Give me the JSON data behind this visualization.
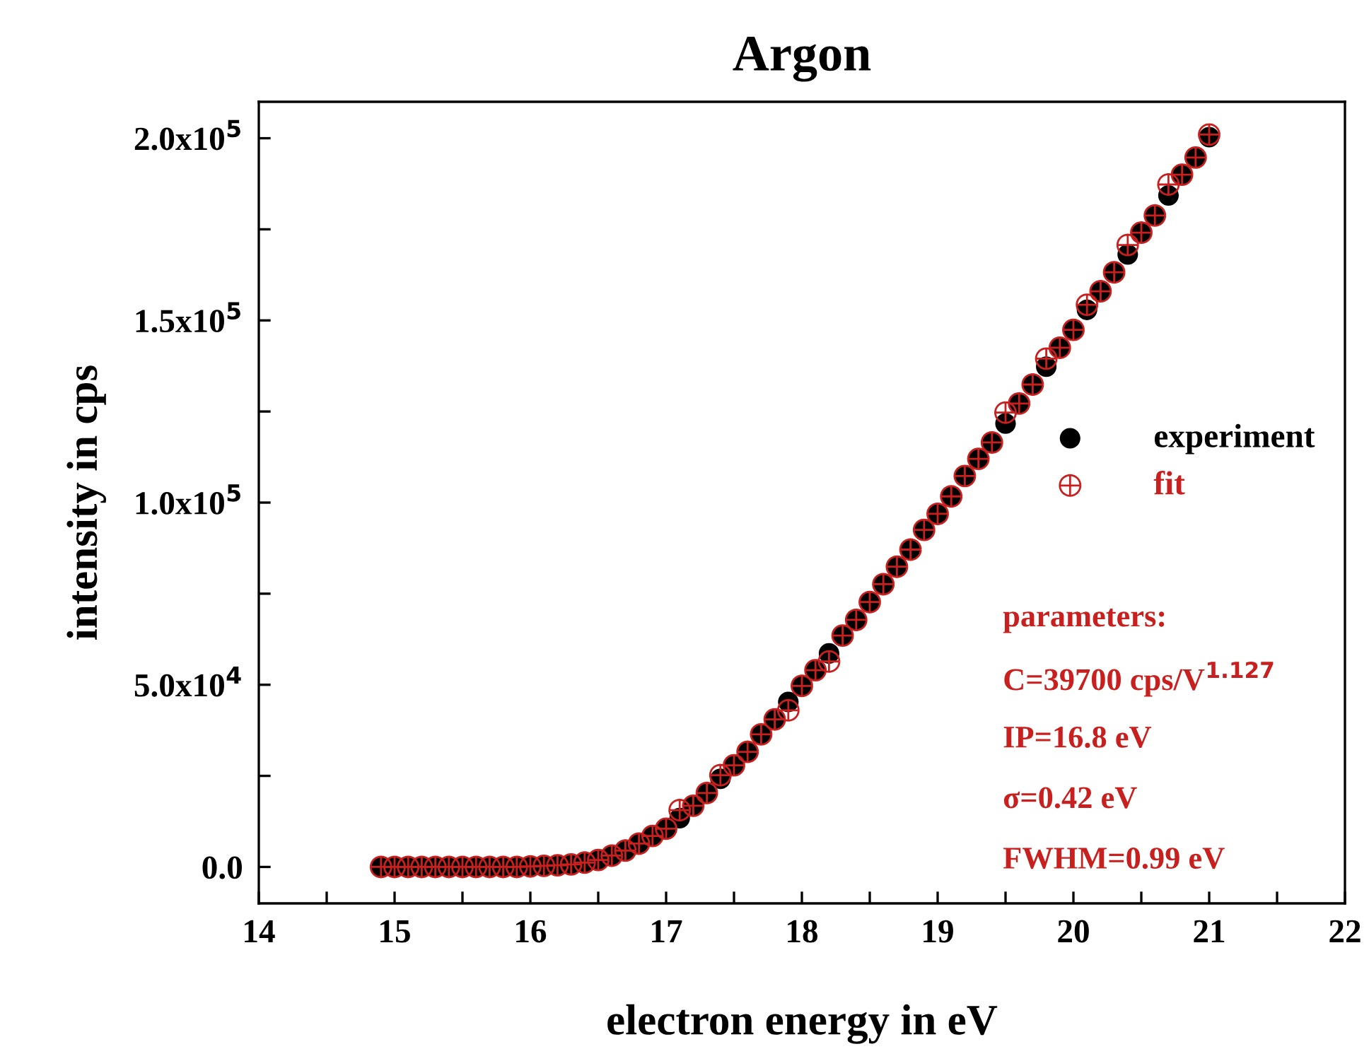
{
  "chart_data": {
    "type": "scatter",
    "title": "Argon",
    "xlabel": "electron energy in eV",
    "ylabel": "intensity in cps",
    "x": [
      14.9,
      15.0,
      15.1,
      15.2,
      15.3,
      15.4,
      15.5,
      15.6,
      15.7,
      15.8,
      15.9,
      16.0,
      16.1,
      16.2,
      16.3,
      16.4,
      16.5,
      16.6,
      16.7,
      16.8,
      16.9,
      17.0,
      17.1,
      17.2,
      17.3,
      17.4,
      17.5,
      17.6,
      17.7,
      17.8,
      17.9,
      18.0,
      18.1,
      18.2,
      18.3,
      18.4,
      18.5,
      18.6,
      18.7,
      18.8,
      18.9,
      19.0,
      19.1,
      19.2,
      19.3,
      19.4,
      19.5,
      19.6,
      19.7,
      19.8,
      19.9,
      20.0,
      20.1,
      20.2,
      20.3,
      20.4,
      20.5,
      20.6,
      20.7,
      20.8,
      20.9,
      21.0
    ],
    "series": [
      {
        "name": "experiment",
        "color": "#000000",
        "marker": "circle",
        "values": [
          0,
          0,
          0,
          0,
          0,
          0,
          0,
          0,
          0,
          0,
          0,
          150,
          300,
          450,
          700,
          1200,
          1900,
          3100,
          4500,
          6400,
          8500,
          10500,
          13400,
          16800,
          20300,
          24200,
          27900,
          31600,
          36400,
          40500,
          45300,
          49700,
          54000,
          58600,
          63500,
          67800,
          72700,
          77600,
          82400,
          87100,
          92500,
          96900,
          101700,
          107300,
          112000,
          116500,
          121700,
          127200,
          132400,
          137300,
          142500,
          147400,
          152900,
          158000,
          163200,
          168100,
          174100,
          178800,
          184300,
          190000,
          194700,
          200300
        ]
      },
      {
        "name": "fit",
        "color": "#c8201e",
        "marker": "cross",
        "values": [
          0,
          0,
          0,
          0,
          0,
          0,
          0,
          0,
          0,
          0,
          0,
          150,
          300,
          450,
          700,
          1200,
          1900,
          3100,
          4500,
          6400,
          8500,
          10500,
          15600,
          16800,
          20300,
          25200,
          27900,
          31600,
          36400,
          40500,
          43000,
          49700,
          54000,
          56400,
          63500,
          67800,
          72700,
          77600,
          82400,
          87100,
          92500,
          96900,
          101700,
          107300,
          112000,
          116500,
          124700,
          127200,
          132400,
          139500,
          142500,
          147400,
          154300,
          158000,
          163200,
          170700,
          174100,
          178800,
          187300,
          190000,
          194700,
          201000
        ]
      }
    ],
    "xlim": [
      14,
      22
    ],
    "ylim": [
      -10000,
      210000
    ],
    "xticks": [
      14,
      {
        "value": 14.5,
        "label": null
      },
      15,
      {
        "value": 15.5,
        "label": null
      },
      16,
      {
        "value": 16.5,
        "label": null
      },
      17,
      {
        "value": 17.5,
        "label": null
      },
      18,
      {
        "value": 18.5,
        "label": null
      },
      19,
      {
        "value": 19.5,
        "label": null
      },
      20,
      {
        "value": 20.5,
        "label": null
      },
      21,
      {
        "value": 21.5,
        "label": null
      },
      22
    ],
    "yticks": [
      {
        "value": 0,
        "label": "0.0"
      },
      {
        "value": 25000,
        "label": null
      },
      {
        "value": 50000,
        "label": "5.0x10$^{4}$"
      },
      {
        "value": 75000,
        "label": null
      },
      {
        "value": 100000,
        "label": "1.0x10$^{5}$"
      },
      {
        "value": 125000,
        "label": null
      },
      {
        "value": 150000,
        "label": "1.5x10$^{5}$"
      },
      {
        "value": 175000,
        "label": null
      },
      {
        "value": 200000,
        "label": "2.0x10$^{5}$"
      }
    ],
    "legend": "right",
    "grid": false,
    "annotations": [
      "parameters:",
      "C=39700 cps/V$^{1.127}$",
      "IP=16.8 eV",
      "σ=0.42 eV",
      "FWHM=0.99 eV"
    ]
  }
}
